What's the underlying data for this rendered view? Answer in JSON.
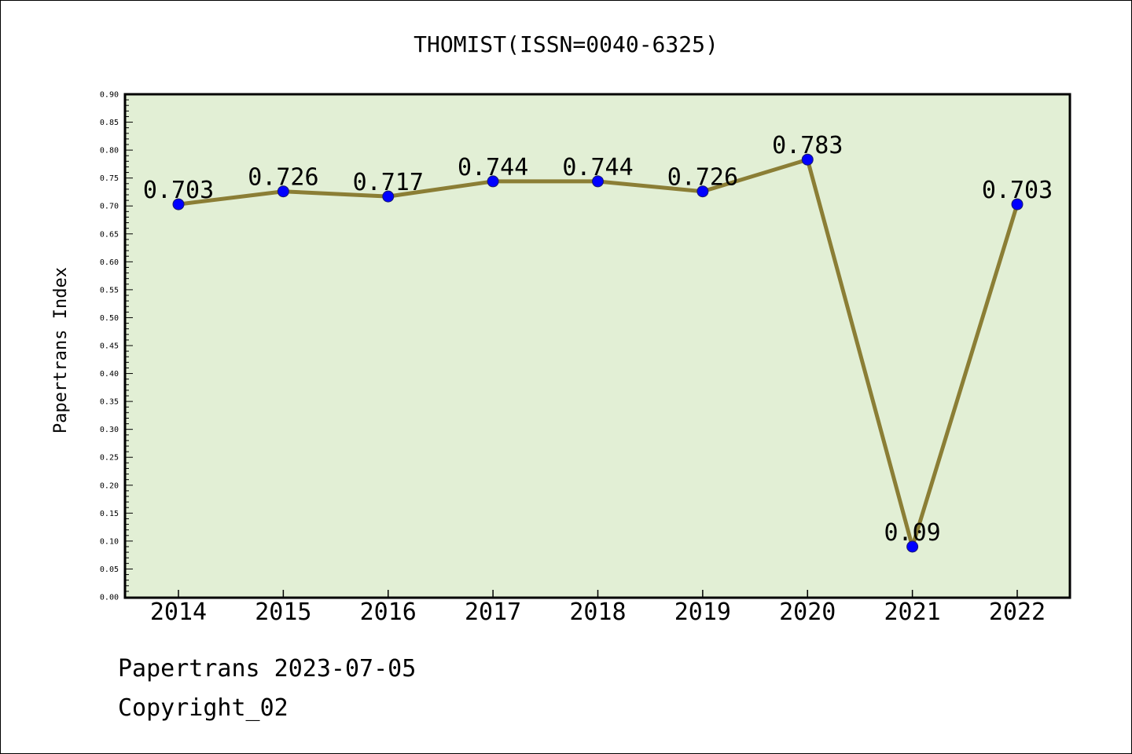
{
  "chart_data": {
    "type": "line",
    "title": "THOMIST(ISSN=0040-6325)",
    "xlabel": "",
    "ylabel": "Papertrans Index",
    "categories": [
      "2014",
      "2015",
      "2016",
      "2017",
      "2018",
      "2019",
      "2020",
      "2021",
      "2022"
    ],
    "series": [
      {
        "values": [
          0.703,
          0.726,
          0.717,
          0.744,
          0.744,
          0.726,
          0.783,
          0.09,
          0.703
        ],
        "labels": [
          "0.703",
          "0.726",
          "0.717",
          "0.744",
          "0.744",
          "0.726",
          "0.783",
          "0.09",
          "0.703"
        ]
      }
    ],
    "ylim": [
      0,
      0.9
    ],
    "yticks": [
      "0.00",
      "0.05",
      "0.10",
      "0.15",
      "0.20",
      "0.25",
      "0.30",
      "0.35",
      "0.40",
      "0.45",
      "0.50",
      "0.55",
      "0.60",
      "0.65",
      "0.70",
      "0.75",
      "0.80",
      "0.85",
      "0.90"
    ],
    "grid": false,
    "colors": {
      "plot_background": "#e2efd5",
      "line": "#8b7e35",
      "marker": "#0000ff"
    }
  },
  "footer": {
    "line1": "Papertrans 2023-07-05",
    "line2": "Copyright_02"
  }
}
